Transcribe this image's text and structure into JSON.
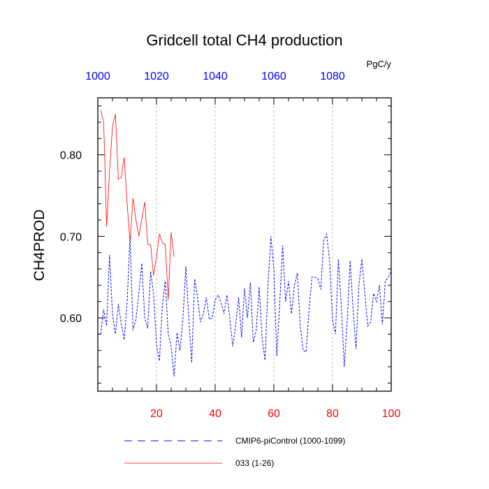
{
  "chart_data": {
    "type": "line",
    "title": "Gridcell total CH4 production",
    "ylabel": "CH4PROD",
    "top_axis_units": "PgC/y",
    "xlim": [
      0,
      100
    ],
    "ylim": [
      0.51,
      0.87
    ],
    "x_ticks_bottom": [
      "20",
      "40",
      "60",
      "80",
      "100"
    ],
    "x_ticks_top": [
      "1000",
      "1020",
      "1040",
      "1060",
      "1080"
    ],
    "y_ticks": [
      "0.60",
      "0.70",
      "0.80"
    ],
    "grid": "vertical dashed at bottom-axis major ticks",
    "colors": {
      "bottom_axis_text": "#ff0000",
      "top_axis_text": "#0000ff"
    },
    "series": [
      {
        "name": "CMIP6-piControl (1000-1099)",
        "color": "#0000ff",
        "dash": "dashed",
        "x": [
          1,
          2,
          3,
          4,
          5,
          6,
          7,
          8,
          9,
          10,
          11,
          12,
          13,
          14,
          15,
          16,
          17,
          18,
          19,
          20,
          21,
          22,
          23,
          24,
          25,
          26,
          27,
          28,
          29,
          30,
          31,
          32,
          33,
          34,
          35,
          36,
          37,
          38,
          39,
          40,
          41,
          42,
          43,
          44,
          45,
          46,
          47,
          48,
          49,
          50,
          51,
          52,
          53,
          54,
          55,
          56,
          57,
          58,
          59,
          60,
          61,
          62,
          63,
          64,
          65,
          66,
          67,
          68,
          69,
          70,
          71,
          72,
          73,
          74,
          75,
          76,
          77,
          78,
          79,
          80,
          81,
          82,
          83,
          84,
          85,
          86,
          87,
          88,
          89,
          90,
          91,
          92,
          93,
          94,
          95,
          96,
          97,
          98,
          99,
          100
        ],
        "y": [
          0.58,
          0.61,
          0.59,
          0.677,
          0.605,
          0.58,
          0.617,
          0.593,
          0.573,
          0.62,
          0.7,
          0.585,
          0.598,
          0.63,
          0.667,
          0.6,
          0.587,
          0.657,
          0.63,
          0.567,
          0.547,
          0.615,
          0.645,
          0.58,
          0.565,
          0.528,
          0.582,
          0.56,
          0.598,
          0.663,
          0.6,
          0.545,
          0.648,
          0.625,
          0.595,
          0.605,
          0.625,
          0.598,
          0.6,
          0.622,
          0.628,
          0.619,
          0.605,
          0.628,
          0.6,
          0.565,
          0.592,
          0.625,
          0.576,
          0.636,
          0.6,
          0.643,
          0.57,
          0.585,
          0.638,
          0.575,
          0.548,
          0.64,
          0.7,
          0.66,
          0.553,
          0.618,
          0.689,
          0.62,
          0.645,
          0.605,
          0.64,
          0.655,
          0.59,
          0.56,
          0.558,
          0.61,
          0.65,
          0.65,
          0.648,
          0.635,
          0.695,
          0.703,
          0.67,
          0.598,
          0.58,
          0.672,
          0.615,
          0.54,
          0.595,
          0.67,
          0.61,
          0.562,
          0.64,
          0.672,
          0.63,
          0.59,
          0.595,
          0.63,
          0.62,
          0.64,
          0.592,
          0.645,
          0.65,
          0.657
        ]
      },
      {
        "name": "033 (1-26)",
        "color": "#ff0000",
        "dash": "solid",
        "x": [
          1,
          2,
          3,
          4,
          5,
          6,
          7,
          8,
          9,
          10,
          11,
          12,
          13,
          14,
          15,
          16,
          17,
          18,
          19,
          20,
          21,
          22,
          23,
          24,
          25,
          26
        ],
        "y": [
          0.855,
          0.84,
          0.712,
          0.78,
          0.835,
          0.85,
          0.77,
          0.772,
          0.797,
          0.74,
          0.693,
          0.747,
          0.72,
          0.7,
          0.722,
          0.742,
          0.69,
          0.69,
          0.652,
          0.675,
          0.703,
          0.692,
          0.69,
          0.622,
          0.705,
          0.675
        ]
      }
    ]
  }
}
